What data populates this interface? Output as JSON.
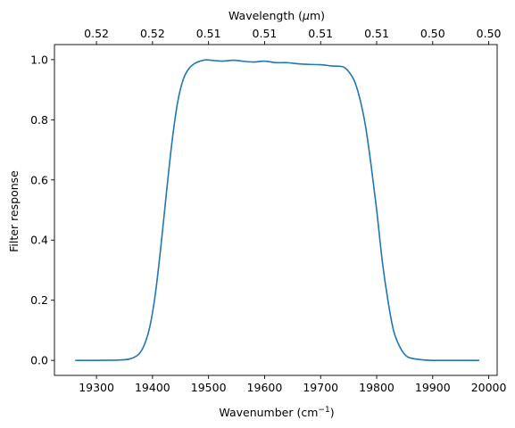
{
  "chart_data": {
    "type": "line",
    "xlabel": "Wavenumber (cm",
    "xlabel_superscript": "−1",
    "xlabel_suffix": ")",
    "ylabel": "Filter response",
    "top_xlabel": "Wavelength (",
    "top_xlabel_mu": "μ",
    "top_xlabel_suffix": "m)",
    "xlim": [
      19225,
      20015
    ],
    "ylim": [
      -0.05,
      1.05
    ],
    "x_ticks": [
      19300,
      19400,
      19500,
      19600,
      19700,
      19800,
      19900,
      20000
    ],
    "x_tick_labels": [
      "19300",
      "19400",
      "19500",
      "19600",
      "19700",
      "19800",
      "19900",
      "20000"
    ],
    "y_ticks": [
      0.0,
      0.2,
      0.4,
      0.6,
      0.8,
      1.0
    ],
    "y_tick_labels": [
      "0.0",
      "0.2",
      "0.4",
      "0.6",
      "0.8",
      "1.0"
    ],
    "top_ticks": [
      19300,
      19400,
      19500,
      19600,
      19700,
      19800,
      19900,
      20000
    ],
    "top_tick_labels": [
      "0.52",
      "0.52",
      "0.51",
      "0.51",
      "0.51",
      "0.51",
      "0.50",
      "0.50"
    ],
    "grid": false,
    "line_color": "#1f77b4",
    "series": [
      {
        "x": [
          19262,
          19300,
          19340,
          19360,
          19375,
          19385,
          19395,
          19405,
          19415,
          19425,
          19435,
          19445,
          19455,
          19465,
          19475,
          19485,
          19495,
          19510,
          19525,
          19545,
          19560,
          19580,
          19600,
          19620,
          19640,
          19660,
          19680,
          19700,
          19720,
          19740,
          19750,
          19760,
          19770,
          19780,
          19790,
          19800,
          19810,
          19820,
          19830,
          19840,
          19850,
          19860,
          19880,
          19900,
          19940,
          19983
        ],
        "y": [
          0.0,
          0.0,
          0.001,
          0.005,
          0.02,
          0.05,
          0.11,
          0.22,
          0.38,
          0.56,
          0.73,
          0.86,
          0.935,
          0.97,
          0.987,
          0.995,
          0.999,
          0.997,
          0.995,
          0.998,
          0.995,
          0.992,
          0.995,
          0.99,
          0.99,
          0.986,
          0.984,
          0.983,
          0.979,
          0.976,
          0.96,
          0.93,
          0.87,
          0.78,
          0.65,
          0.5,
          0.33,
          0.2,
          0.1,
          0.05,
          0.02,
          0.008,
          0.002,
          0.0,
          0.0,
          0.0
        ]
      }
    ]
  }
}
